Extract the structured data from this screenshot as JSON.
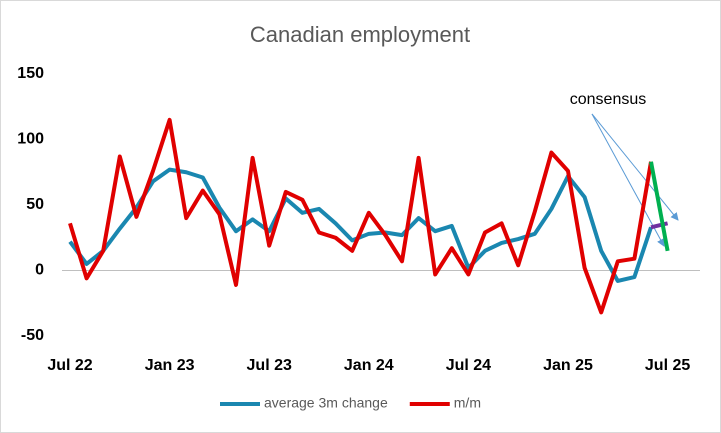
{
  "chart_data": {
    "type": "line",
    "title": "Canadian employment",
    "categories": [
      "Jul 22",
      null,
      null,
      null,
      null,
      null,
      "Jan 23",
      null,
      null,
      null,
      null,
      null,
      "Jul 23",
      null,
      null,
      null,
      null,
      null,
      "Jan 24",
      null,
      null,
      null,
      null,
      null,
      "Jul 24",
      null,
      null,
      null,
      null,
      null,
      "Jan 25",
      null,
      null,
      null,
      null,
      null,
      "Jul 25"
    ],
    "series": [
      {
        "name": "average 3m change",
        "color": "#1a87b0",
        "values": [
          22,
          5,
          15,
          32,
          48,
          68,
          77,
          75,
          71,
          48,
          30,
          39,
          30,
          55,
          44,
          47,
          36,
          23,
          28,
          29,
          27,
          40,
          30,
          34,
          2,
          15,
          21,
          24,
          28,
          47,
          72,
          56,
          15,
          -8,
          -5,
          33,
          null
        ]
      },
      {
        "name": "m/m",
        "color": "#e00000",
        "values": [
          36,
          -6,
          15,
          87,
          41,
          76,
          115,
          40,
          61,
          43,
          -11,
          86,
          19,
          60,
          54,
          29,
          25,
          15,
          44,
          27,
          7,
          86,
          -3,
          17,
          -3,
          29,
          36,
          4,
          45,
          90,
          76,
          2,
          -32,
          7,
          9,
          83,
          null
        ]
      }
    ],
    "consensus": {
      "label": "consensus",
      "values": [
        36,
        15
      ],
      "colors": [
        "#7030a0",
        "#00b050"
      ]
    },
    "ylim": [
      -50,
      150
    ],
    "yticks": [
      -50,
      0,
      50,
      100,
      150
    ],
    "grid": false
  }
}
